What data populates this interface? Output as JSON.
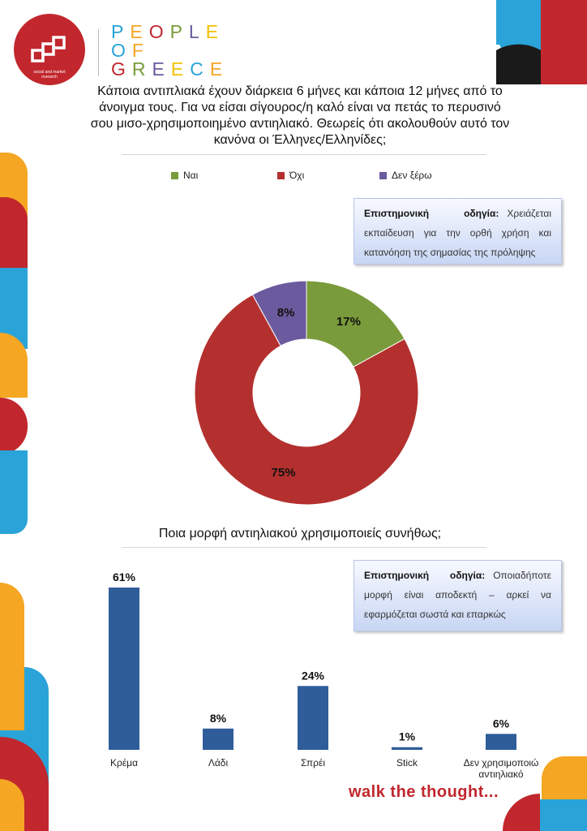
{
  "brand": {
    "logo_caption": "social and market research",
    "lines": [
      "PEOPLE",
      "OF",
      "GREECE"
    ],
    "tagline": "walk the thought...",
    "colors": [
      "#2aa3d8",
      "#f5a623",
      "#c1272d",
      "#7a9b3b",
      "#6b5a9e",
      "#f2c200"
    ]
  },
  "question1": {
    "title": "Κάποια αντιπλιακά έχουν διάρκεια 6 μήνες και κάποια 12 μήνες από το άνοιγμα τους. Για να είσαι σίγουρος/η καλό είναι να πετάς το περυσινό σου μισο-χρησιμοποιημένο αντιηλιακό. Θεωρείς ότι ακολουθούν αυτό τον κανόνα οι Έλληνες/Ελληνίδες;",
    "note_heading": "Επιστημονική οδηγία:",
    "note_text": "Χρειάζεται εκπαίδευση για την ορθή χρήση και κατανόηση της σημασίας της πρόληψης"
  },
  "question2": {
    "title": "Ποια μορφή αντιηλιακού χρησιμοποιείς συνήθως;",
    "note_heading": "Επιστημονική οδηγία:",
    "note_text": "Οποιαδήποτε μορφή είναι αποδεκτή – αρκεί να εφαρμόζεται σωστά και επαρκώς"
  },
  "chart_data": [
    {
      "type": "pie",
      "donut": true,
      "categories": [
        "Ναι",
        "Όχι",
        "Δεν ξέρω"
      ],
      "values": [
        17,
        75,
        8
      ],
      "labels": [
        "17%",
        "75%",
        "8%"
      ],
      "colors": [
        "#7a9b3b",
        "#b3302e",
        "#6b5a9e"
      ],
      "legend": "top"
    },
    {
      "type": "bar",
      "categories": [
        "Κρέμα",
        "Λάδι",
        "Σπρέι",
        "Stick",
        "Δεν χρησιμοποιώ αντιηλιακό"
      ],
      "values": [
        61,
        8,
        24,
        1,
        6
      ],
      "labels": [
        "61%",
        "8%",
        "24%",
        "1%",
        "6%"
      ],
      "color": "#2f5d9a",
      "ylim": [
        0,
        61
      ]
    }
  ]
}
